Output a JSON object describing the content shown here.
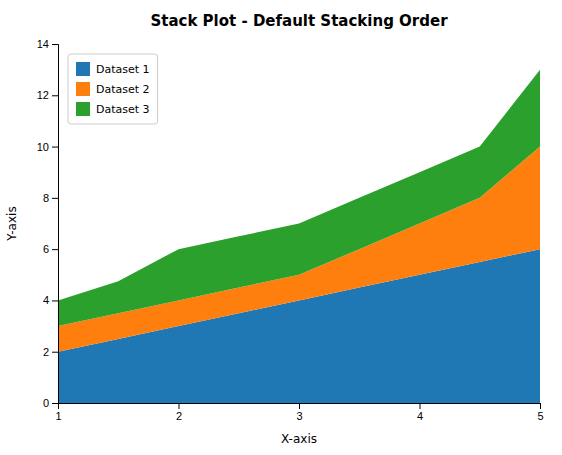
{
  "chart_data": {
    "type": "area",
    "stacked": true,
    "title": "Stack Plot - Default Stacking Order",
    "x_label": "X-axis",
    "y_label": "Y-axis",
    "x": [
      1.0,
      1.5,
      2.0,
      2.5,
      3.0,
      3.5,
      4.0,
      4.5,
      5.0
    ],
    "series": [
      {
        "name": "Dataset 1",
        "color": "#1f77b4",
        "values": [
          2.0,
          2.5,
          3.0,
          3.5,
          4.0,
          4.5,
          5.0,
          5.5,
          6.0
        ]
      },
      {
        "name": "Dataset 2",
        "color": "#ff7f0e",
        "values": [
          1.0,
          1.0,
          1.0,
          1.0,
          1.0,
          1.5,
          2.0,
          2.5,
          4.0
        ]
      },
      {
        "name": "Dataset 3",
        "color": "#2ca02c",
        "values": [
          1.0,
          1.25,
          2.0,
          2.0,
          2.0,
          2.0,
          2.0,
          2.0,
          3.0
        ]
      }
    ],
    "xlim": [
      1.0,
      5.0
    ],
    "xticks": [
      1,
      2,
      3,
      4,
      5
    ],
    "ylim": [
      0,
      14
    ],
    "yticks": [
      0,
      2,
      4,
      6,
      8,
      10,
      12,
      14
    ],
    "grid": false,
    "legend": "upper left"
  }
}
